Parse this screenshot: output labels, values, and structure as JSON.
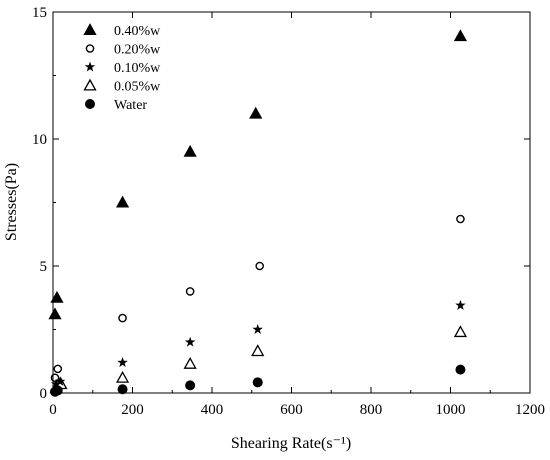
{
  "chart_data": {
    "type": "scatter",
    "xlabel": "Shearing Rate(s⁻¹)",
    "ylabel": "Stresses(Pa)",
    "xlim": [
      0,
      1200
    ],
    "ylim": [
      0,
      15
    ],
    "x_ticks": [
      0,
      200,
      400,
      600,
      800,
      1000,
      1200
    ],
    "y_ticks": [
      0,
      5,
      10,
      15
    ],
    "x_tick_labels": [
      "0",
      "200",
      "400",
      "600",
      "800",
      "1000",
      "1200"
    ],
    "y_tick_labels": [
      "0",
      "5",
      "10",
      "15"
    ],
    "grid": false,
    "legend_position": "top-left",
    "series": [
      {
        "name": "0.40%w",
        "marker": "filled-triangle",
        "points": [
          [
            5,
            3.1
          ],
          [
            10,
            3.75
          ],
          [
            175,
            7.5
          ],
          [
            345,
            9.5
          ],
          [
            510,
            11.0
          ],
          [
            1025,
            14.05
          ]
        ]
      },
      {
        "name": "0.20%w",
        "marker": "open-circle",
        "points": [
          [
            5,
            0.6
          ],
          [
            12,
            0.95
          ],
          [
            175,
            2.95
          ],
          [
            345,
            4.0
          ],
          [
            520,
            5.0
          ],
          [
            1025,
            6.85
          ]
        ]
      },
      {
        "name": "0.10%w",
        "marker": "filled-star",
        "points": [
          [
            8,
            0.35
          ],
          [
            18,
            0.45
          ],
          [
            175,
            1.2
          ],
          [
            345,
            2.0
          ],
          [
            515,
            2.5
          ],
          [
            1025,
            3.45
          ]
        ]
      },
      {
        "name": "0.05%w",
        "marker": "open-triangle",
        "points": [
          [
            8,
            0.2
          ],
          [
            20,
            0.35
          ],
          [
            175,
            0.6
          ],
          [
            345,
            1.15
          ],
          [
            515,
            1.65
          ],
          [
            1025,
            2.4
          ]
        ]
      },
      {
        "name": "Water",
        "marker": "filled-circle",
        "points": [
          [
            5,
            0.05
          ],
          [
            12,
            0.1
          ],
          [
            175,
            0.15
          ],
          [
            345,
            0.3
          ],
          [
            515,
            0.42
          ],
          [
            1025,
            0.92
          ]
        ]
      }
    ]
  }
}
